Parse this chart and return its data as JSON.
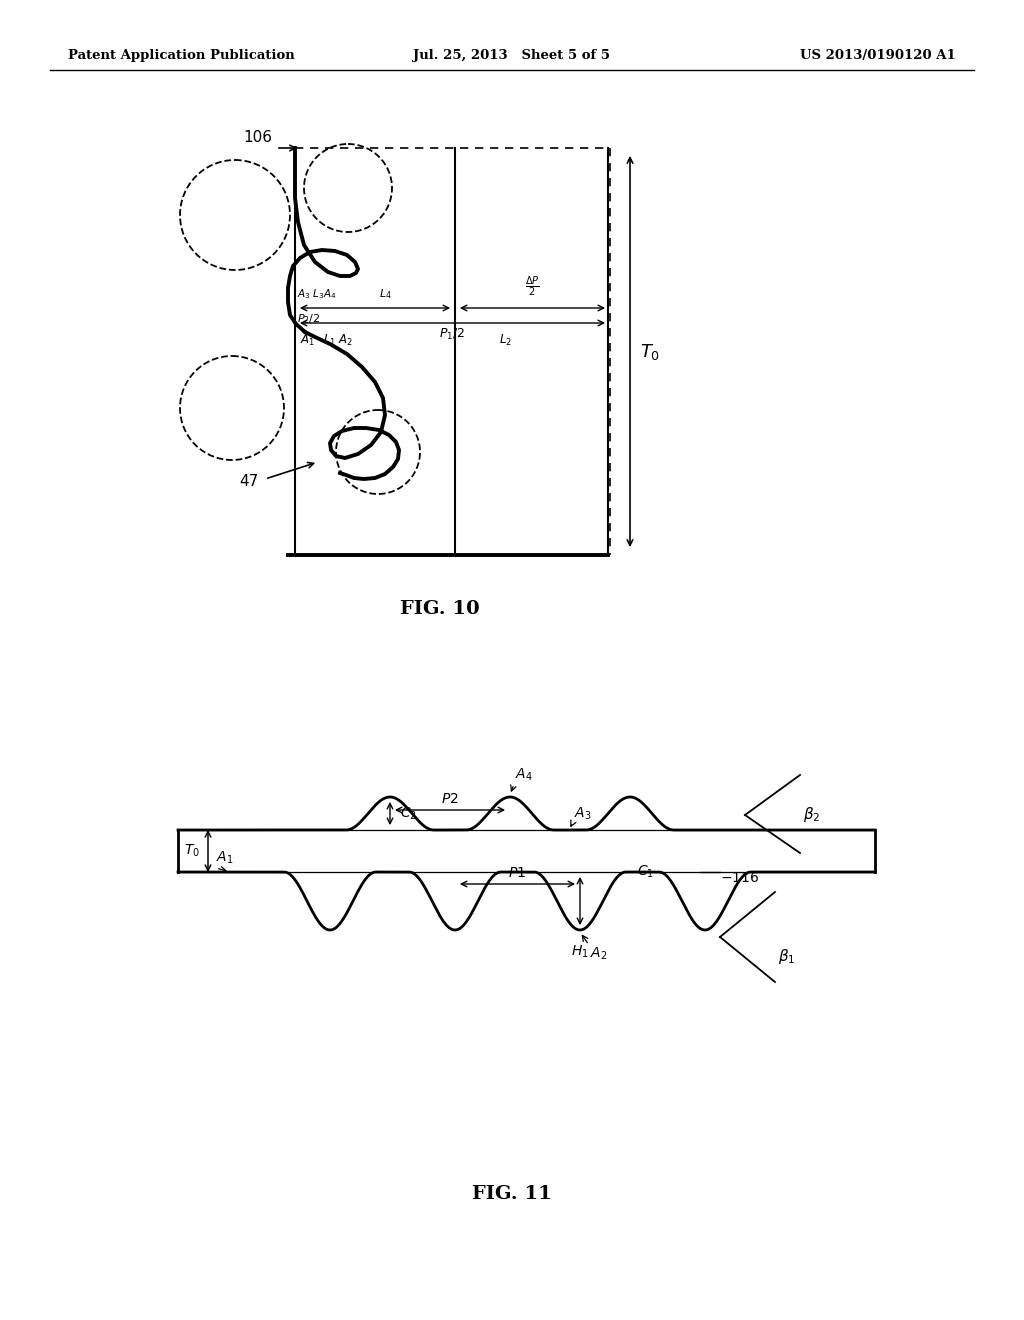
{
  "header_left": "Patent Application Publication",
  "header_center": "Jul. 25, 2013   Sheet 5 of 5",
  "header_right": "US 2013/0190120 A1",
  "fig10_label": "FIG. 10",
  "fig11_label": "FIG. 11",
  "bg_color": "#ffffff",
  "line_color": "#000000"
}
